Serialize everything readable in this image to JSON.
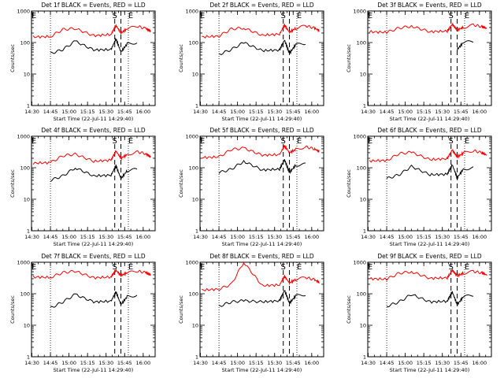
{
  "figure": {
    "tick_labels_x": [
      "14:30",
      "14:45",
      "15:00",
      "15:15",
      "15:30",
      "15:45",
      "16:00"
    ],
    "tick_labels_y": [
      "1",
      "10",
      "100",
      "1000"
    ],
    "start_marker": "S",
    "end_marker": "E",
    "colors": {
      "events": "#000000",
      "lld": "#ff0000",
      "axes": "#000000",
      "background": "#ffffff"
    }
  },
  "chart_data": [
    {
      "type": "line",
      "title": "Det 1f BLACK = Events, RED = LLD",
      "xlabel": "Start Time (22-Jul-11 14:29:40)",
      "ylabel": "Counts/sec",
      "xlim": [
        "14:29:40",
        "16:09:40"
      ],
      "ylim": [
        1,
        1000
      ],
      "yscale": "log",
      "x": [
        "14:31",
        "14:45",
        "14:55",
        "15:05",
        "15:20",
        "15:34",
        "15:38",
        "15:42",
        "15:47",
        "15:55",
        "16:02",
        "16:06"
      ],
      "series": [
        {
          "name": "Events",
          "values": [
            null,
            45,
            60,
            110,
            58,
            60,
            130,
            50,
            90,
            100,
            null,
            null
          ]
        },
        {
          "name": "LLD",
          "values": [
            150,
            155,
            260,
            280,
            165,
            180,
            350,
            200,
            270,
            330,
            280,
            230
          ]
        }
      ],
      "vlines_dotted": [
        "14:45",
        "15:48"
      ],
      "vlines_dashed": [
        "15:37",
        "15:42"
      ]
    },
    {
      "type": "line",
      "title": "Det 2f BLACK = Events, RED = LLD",
      "xlabel": "Start Time (22-Jul-11 14:29:40)",
      "ylabel": "Counts/sec",
      "xlim": [
        "14:29:40",
        "16:09:40"
      ],
      "ylim": [
        1,
        1000
      ],
      "yscale": "log",
      "x": [
        "14:31",
        "14:45",
        "14:55",
        "15:05",
        "15:20",
        "15:34",
        "15:38",
        "15:42",
        "15:47",
        "15:55",
        "16:02",
        "16:06"
      ],
      "series": [
        {
          "name": "Events",
          "values": [
            null,
            42,
            60,
            100,
            55,
            58,
            120,
            45,
            85,
            95,
            null,
            null
          ]
        },
        {
          "name": "LLD",
          "values": [
            150,
            160,
            270,
            290,
            170,
            185,
            360,
            210,
            280,
            340,
            290,
            240
          ]
        }
      ],
      "vlines_dotted": [
        "14:45",
        "15:48"
      ],
      "vlines_dashed": [
        "15:37",
        "15:42"
      ]
    },
    {
      "type": "line",
      "title": "Det 3f BLACK = Events, RED = LLD",
      "xlabel": "Start Time (22-Jul-11 14:29:40)",
      "ylabel": "Counts/sec",
      "xlim": [
        "14:29:40",
        "16:09:40"
      ],
      "ylim": [
        1,
        1000
      ],
      "yscale": "log",
      "x": [
        "14:31",
        "14:45",
        "14:55",
        "15:05",
        "15:20",
        "15:34",
        "15:38",
        "15:42",
        "15:47",
        "15:55",
        "16:02",
        "16:06"
      ],
      "series": [
        {
          "name": "Events",
          "values": [
            null,
            null,
            null,
            null,
            null,
            null,
            null,
            60,
            100,
            110,
            null,
            null
          ]
        },
        {
          "name": "LLD",
          "values": [
            220,
            210,
            290,
            330,
            220,
            230,
            380,
            250,
            300,
            360,
            320,
            280
          ]
        }
      ],
      "vlines_dotted": [
        "14:45",
        "15:48"
      ],
      "vlines_dashed": [
        "15:37",
        "15:42"
      ]
    },
    {
      "type": "line",
      "title": "Det 4f BLACK = Events, RED = LLD",
      "xlabel": "Start Time (22-Jul-11 14:29:40)",
      "ylabel": "Counts/sec",
      "xlim": [
        "14:29:40",
        "16:09:40"
      ],
      "ylim": [
        1,
        1000
      ],
      "yscale": "log",
      "x": [
        "14:31",
        "14:45",
        "14:55",
        "15:05",
        "15:20",
        "15:34",
        "15:38",
        "15:42",
        "15:47",
        "15:55",
        "16:02",
        "16:06"
      ],
      "series": [
        {
          "name": "Events",
          "values": [
            null,
            40,
            55,
            100,
            55,
            58,
            115,
            45,
            80,
            90,
            null,
            null
          ]
        },
        {
          "name": "LLD",
          "values": [
            140,
            145,
            240,
            270,
            160,
            175,
            340,
            200,
            260,
            320,
            280,
            220
          ]
        }
      ],
      "vlines_dotted": [
        "14:45",
        "15:48"
      ],
      "vlines_dashed": [
        "15:37",
        "15:42"
      ]
    },
    {
      "type": "line",
      "title": "Det 5f BLACK = Events, RED = LLD",
      "xlabel": "Start Time (22-Jul-11 14:29:40)",
      "ylabel": "Counts/sec",
      "xlim": [
        "14:29:40",
        "16:09:40"
      ],
      "ylim": [
        1,
        1000
      ],
      "yscale": "log",
      "x": [
        "14:31",
        "14:45",
        "14:55",
        "15:05",
        "15:20",
        "15:34",
        "15:38",
        "15:42",
        "15:47",
        "15:55",
        "16:02",
        "16:06"
      ],
      "series": [
        {
          "name": "Events",
          "values": [
            null,
            70,
            90,
            160,
            85,
            90,
            180,
            70,
            120,
            130,
            null,
            null
          ]
        },
        {
          "name": "LLD",
          "values": [
            210,
            220,
            380,
            420,
            250,
            260,
            500,
            300,
            380,
            460,
            400,
            330
          ]
        }
      ],
      "vlines_dotted": [
        "14:45",
        "15:48"
      ],
      "vlines_dashed": [
        "15:37",
        "15:42"
      ]
    },
    {
      "type": "line",
      "title": "Det 6f BLACK = Events, RED = LLD",
      "xlabel": "Start Time (22-Jul-11 14:29:40)",
      "ylabel": "Counts/sec",
      "xlim": [
        "14:29:40",
        "16:09:40"
      ],
      "ylim": [
        1,
        1000
      ],
      "yscale": "log",
      "x": [
        "14:31",
        "14:45",
        "14:55",
        "15:05",
        "15:20",
        "15:34",
        "15:38",
        "15:42",
        "15:47",
        "15:55",
        "16:02",
        "16:06"
      ],
      "series": [
        {
          "name": "Events",
          "values": [
            null,
            45,
            60,
            110,
            60,
            62,
            125,
            48,
            90,
            100,
            null,
            null
          ]
        },
        {
          "name": "LLD",
          "values": [
            165,
            170,
            280,
            310,
            180,
            195,
            370,
            220,
            290,
            350,
            300,
            250
          ]
        }
      ],
      "vlines_dotted": [
        "14:45",
        "15:48"
      ],
      "vlines_dashed": [
        "15:37",
        "15:42"
      ]
    },
    {
      "type": "line",
      "title": "Det 7f BLACK = Events, RED = LLD",
      "xlabel": "Start Time (22-Jul-11 14:29:40)",
      "ylabel": "Counts/sec",
      "xlim": [
        "14:29:40",
        "16:09:40"
      ],
      "ylim": [
        1,
        1000
      ],
      "yscale": "log",
      "x": [
        "14:31",
        "14:45",
        "14:55",
        "15:05",
        "15:20",
        "15:34",
        "15:38",
        "15:42",
        "15:47",
        "15:55",
        "16:02",
        "16:06"
      ],
      "series": [
        {
          "name": "Events",
          "values": [
            null,
            35,
            55,
            95,
            55,
            58,
            115,
            45,
            80,
            90,
            null,
            null
          ]
        },
        {
          "name": "LLD",
          "values": [
            340,
            330,
            470,
            520,
            320,
            340,
            560,
            380,
            460,
            520,
            470,
            400
          ]
        }
      ],
      "vlines_dotted": [
        "14:45",
        "15:48"
      ],
      "vlines_dashed": [
        "15:37",
        "15:42"
      ]
    },
    {
      "type": "line",
      "title": "Det 8f BLACK = Events, RED = LLD",
      "xlabel": "Start Time (22-Jul-11 14:29:40)",
      "ylabel": "Counts/sec",
      "xlim": [
        "14:29:40",
        "16:09:40"
      ],
      "ylim": [
        1,
        1000
      ],
      "yscale": "log",
      "x": [
        "14:31",
        "14:45",
        "14:55",
        "15:05",
        "15:20",
        "15:34",
        "15:38",
        "15:42",
        "15:47",
        "15:55",
        "16:02",
        "16:06"
      ],
      "series": [
        {
          "name": "Events",
          "values": [
            null,
            40,
            55,
            60,
            55,
            60,
            130,
            50,
            85,
            95,
            null,
            null
          ]
        },
        {
          "name": "LLD",
          "values": [
            130,
            140,
            200,
            1000,
            180,
            190,
            360,
            220,
            280,
            330,
            280,
            230
          ]
        }
      ],
      "vlines_dotted": [
        "14:45",
        "15:48"
      ],
      "vlines_dashed": [
        "15:37",
        "15:42"
      ]
    },
    {
      "type": "line",
      "title": "Det 9f BLACK = Events, RED = LLD",
      "xlabel": "Start Time (22-Jul-11 14:29:40)",
      "ylabel": "Counts/sec",
      "xlim": [
        "14:29:40",
        "16:09:40"
      ],
      "ylim": [
        1,
        1000
      ],
      "yscale": "log",
      "x": [
        "14:31",
        "14:45",
        "14:55",
        "15:05",
        "15:20",
        "15:34",
        "15:38",
        "15:42",
        "15:47",
        "15:55",
        "16:02",
        "16:06"
      ],
      "series": [
        {
          "name": "Events",
          "values": [
            null,
            40,
            55,
            95,
            55,
            58,
            115,
            45,
            80,
            90,
            null,
            null
          ]
        },
        {
          "name": "LLD",
          "values": [
            300,
            290,
            450,
            500,
            310,
            320,
            560,
            370,
            450,
            510,
            460,
            390
          ]
        }
      ],
      "vlines_dotted": [
        "14:45",
        "15:48"
      ],
      "vlines_dashed": [
        "15:37",
        "15:42"
      ]
    }
  ]
}
